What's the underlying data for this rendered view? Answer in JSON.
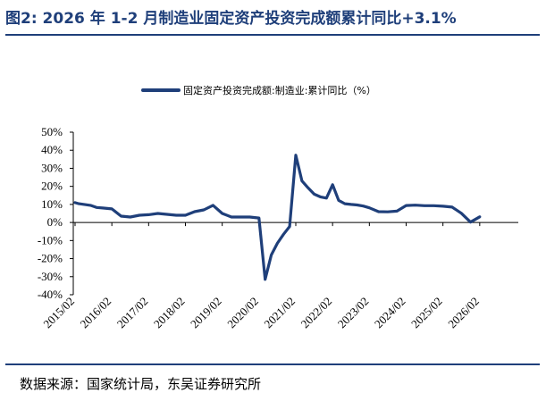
{
  "figure": {
    "title": "图2:  2026 年 1-2 月制造业固定资产投资完成额累计同比+3.1%",
    "source": "数据来源：国家统计局，东吴证券研究所"
  },
  "colors": {
    "title": "#1f3f7a",
    "series": "#1f3f7a",
    "axis": "#000000"
  },
  "chart_data": {
    "type": "line",
    "title": "",
    "xlabel": "",
    "ylabel": "",
    "ylim": [
      -40,
      50
    ],
    "yticks": [
      -40,
      -30,
      -20,
      -10,
      0,
      10,
      20,
      30,
      40,
      50
    ],
    "ytick_labels": [
      "-40%",
      "-30%",
      "-20%",
      "-10%",
      "0%",
      "10%",
      "20%",
      "30%",
      "40%",
      "50%"
    ],
    "xticks": [
      "2015/02",
      "2016/02",
      "2017/02",
      "2018/02",
      "2019/02",
      "2020/02",
      "2021/02",
      "2022/02",
      "2023/02",
      "2024/02",
      "2025/02",
      "2026/02"
    ],
    "legend": "top",
    "grid": false,
    "series": [
      {
        "name": "固定资产投资完成额:制造业:累计同比（%）",
        "x": [
          "2015/02",
          "2015/03",
          "2015/05",
          "2015/07",
          "2015/09",
          "2015/11",
          "2016/02",
          "2016/05",
          "2016/08",
          "2016/11",
          "2017/02",
          "2017/05",
          "2017/08",
          "2017/11",
          "2018/02",
          "2018/05",
          "2018/08",
          "2018/11",
          "2019/02",
          "2019/05",
          "2019/08",
          "2019/11",
          "2020/02",
          "2020/04",
          "2020/06",
          "2020/08",
          "2020/10",
          "2020/12",
          "2021/02",
          "2021/04",
          "2021/06",
          "2021/08",
          "2021/10",
          "2021/12",
          "2022/02",
          "2022/04",
          "2022/06",
          "2022/08",
          "2022/10",
          "2022/12",
          "2023/02",
          "2023/05",
          "2023/08",
          "2023/11",
          "2024/02",
          "2024/05",
          "2024/08",
          "2024/11",
          "2025/02",
          "2025/05",
          "2025/08",
          "2025/11",
          "2026/02"
        ],
        "values": [
          11.0,
          10.5,
          10.0,
          9.5,
          8.3,
          8.0,
          7.5,
          3.5,
          3.0,
          4.0,
          4.3,
          5.0,
          4.5,
          4.0,
          4.0,
          6.0,
          7.0,
          9.5,
          5.0,
          3.0,
          3.0,
          3.0,
          2.5,
          -31.5,
          -18.0,
          -11.5,
          -6.5,
          -2.2,
          37.3,
          23.0,
          19.2,
          15.7,
          14.2,
          13.5,
          20.9,
          12.2,
          10.4,
          10.0,
          9.7,
          9.1,
          8.1,
          6.0,
          5.9,
          6.3,
          9.4,
          9.6,
          9.3,
          9.3,
          9.0,
          8.5,
          5.1,
          0.2,
          3.1
        ]
      }
    ]
  }
}
